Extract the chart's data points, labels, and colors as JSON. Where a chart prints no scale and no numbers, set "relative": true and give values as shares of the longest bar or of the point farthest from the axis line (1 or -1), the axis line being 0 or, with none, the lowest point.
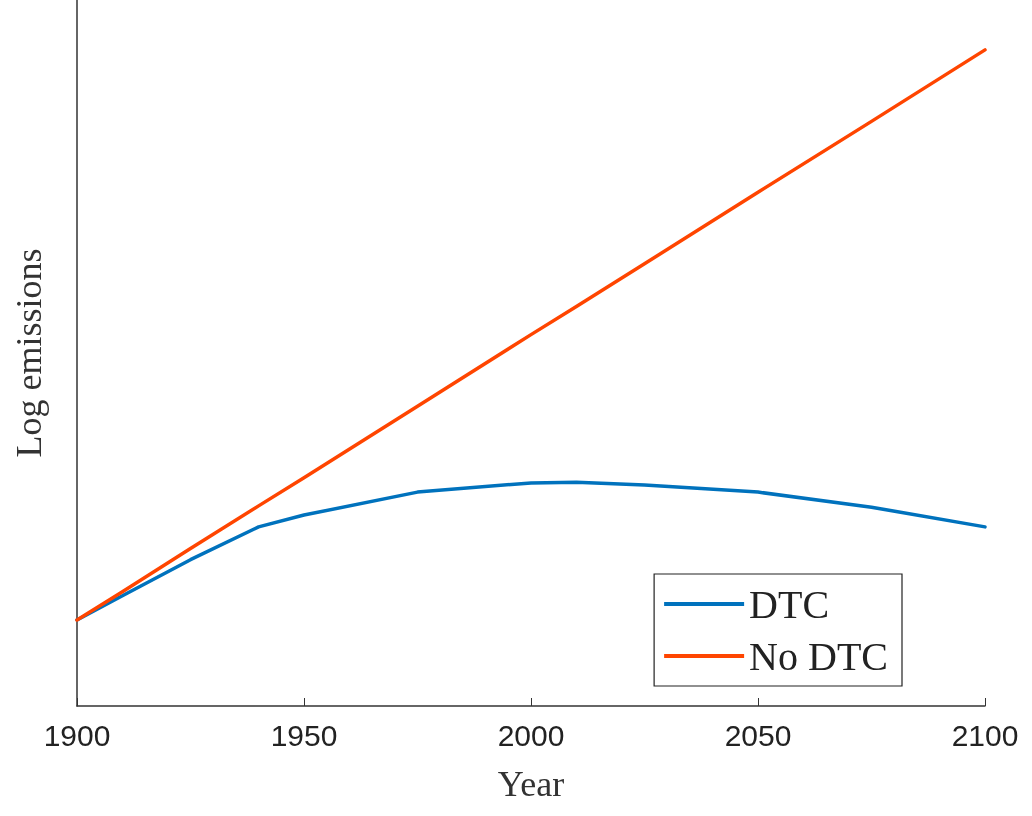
{
  "chart_data": {
    "type": "line",
    "xlabel": "Year",
    "ylabel": "Log emissions",
    "relative": true,
    "x": [
      1900,
      1910,
      1925,
      1940,
      1950,
      1975,
      2000,
      2010,
      2025,
      2050,
      2075,
      2100
    ],
    "xlim": [
      1900,
      2100
    ],
    "xticks": [
      1900,
      1950,
      2000,
      2050,
      2100
    ],
    "series": [
      {
        "name": "DTC",
        "color": "#0072bd",
        "values": [
          0.131,
          0.168,
          0.223,
          0.273,
          0.291,
          0.326,
          0.34,
          0.341,
          0.337,
          0.326,
          0.303,
          0.273
        ]
      },
      {
        "name": "No DTC",
        "color": "#ff4500",
        "values": [
          0.131,
          0.174,
          0.24,
          0.305,
          0.348,
          0.457,
          0.566,
          0.609,
          0.674,
          0.783,
          0.891,
          1.0
        ]
      }
    ],
    "legend": "bottom right",
    "grid": false,
    "marker": "none",
    "line_style": "solid"
  }
}
